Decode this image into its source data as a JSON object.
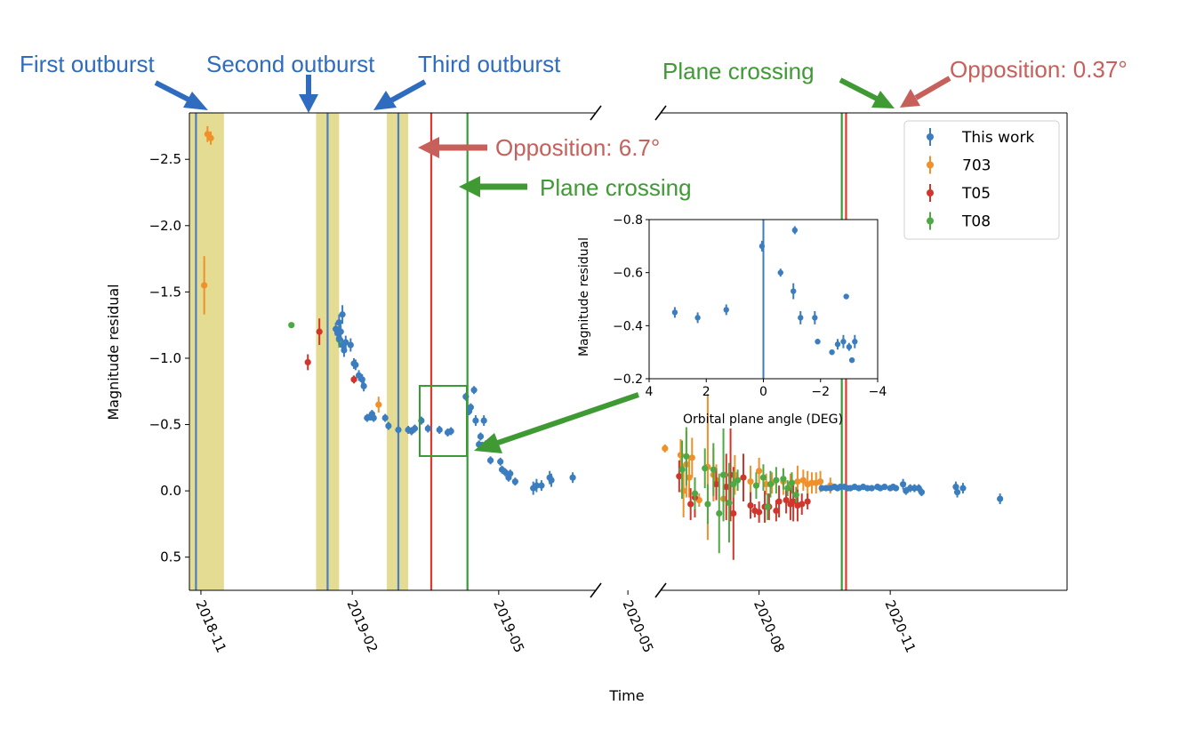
{
  "chart_data": {
    "type": "scatter",
    "xlabel": "Time",
    "ylabel": "Magnitude residual",
    "y_inverted": true,
    "ylim": [
      0.75,
      -2.85
    ],
    "yticks": [
      "−2.5",
      "−2.0",
      "−1.5",
      "−1.0",
      "−0.5",
      "0.0",
      "0.5"
    ],
    "ytick_values": [
      -2.5,
      -2.0,
      -1.5,
      -1.0,
      -0.5,
      0.0,
      0.5
    ],
    "broken_x_axis": true,
    "xlim_left_days": [
      -7,
      240
    ],
    "xlim_right_days": [
      570,
      855
    ],
    "x_origin": "2018-11-01",
    "xticks": [
      {
        "label": "2018-11",
        "day": 0
      },
      {
        "label": "2019-02",
        "day": 92
      },
      {
        "label": "2019-05",
        "day": 181
      },
      {
        "label": "2020-05",
        "day": 547
      },
      {
        "label": "2020-08",
        "day": 639
      },
      {
        "label": "2020-11",
        "day": 731
      }
    ],
    "outburst_bands": [
      [
        -7,
        14
      ],
      [
        70,
        84
      ],
      [
        113,
        126
      ]
    ],
    "vlines": [
      {
        "name": "first-outburst",
        "day": -3,
        "color": "#4a7fc1"
      },
      {
        "name": "second-outburst",
        "day": 77,
        "color": "#4a7fc1"
      },
      {
        "name": "third-outburst",
        "day": 120,
        "color": "#4a7fc1"
      },
      {
        "name": "opposition-1",
        "day": 140,
        "color": "#e0382b"
      },
      {
        "name": "plane-crossing-1",
        "day": 162,
        "color": "#3a9a35"
      },
      {
        "name": "plane-crossing-2",
        "day": 697,
        "color": "#3a9a35"
      },
      {
        "name": "opposition-2",
        "day": 700,
        "color": "#e0382b"
      }
    ],
    "legend": {
      "location": "top-right",
      "entries": [
        {
          "label": "This work",
          "color": "#3b7dbf"
        },
        {
          "label": "703",
          "color": "#f0902a"
        },
        {
          "label": "T05",
          "color": "#d0362c"
        },
        {
          "label": "T08",
          "color": "#4ea844"
        }
      ]
    },
    "series": [
      {
        "name": "This work",
        "color": "#3b7dbf",
        "points": [
          [
            82,
            -1.22,
            0.05
          ],
          [
            83,
            -1.19,
            0.05
          ],
          [
            84,
            -1.27,
            0.06
          ],
          [
            84,
            -1.15,
            0.05
          ],
          [
            85,
            -1.2,
            0.05
          ],
          [
            86,
            -1.33,
            0.07
          ],
          [
            86,
            -1.1,
            0.05
          ],
          [
            87,
            -1.06,
            0.05
          ],
          [
            88,
            -1.12,
            0.05
          ],
          [
            91,
            -1.1,
            0.05
          ],
          [
            93,
            -0.96,
            0.04
          ],
          [
            94,
            -0.95,
            0.04
          ],
          [
            96,
            -0.87,
            0.04
          ],
          [
            98,
            -0.84,
            0.04
          ],
          [
            99,
            -0.79,
            0.04
          ],
          [
            101,
            -0.55,
            0.03
          ],
          [
            103,
            -0.56,
            0.03
          ],
          [
            104,
            -0.58,
            0.03
          ],
          [
            105,
            -0.55,
            0.03
          ],
          [
            112,
            -0.55,
            0.03
          ],
          [
            114,
            -0.49,
            0.03
          ],
          [
            120,
            -0.46,
            0.03
          ],
          [
            126,
            -0.46,
            0.03
          ],
          [
            128,
            -0.45,
            0.03
          ],
          [
            130,
            -0.47,
            0.03
          ],
          [
            134,
            -0.53,
            0.03
          ],
          [
            138,
            -0.47,
            0.03
          ],
          [
            145,
            -0.46,
            0.03
          ],
          [
            150,
            -0.44,
            0.03
          ],
          [
            152,
            -0.45,
            0.03
          ],
          [
            161,
            -0.71,
            0.03
          ],
          [
            163,
            -0.6,
            0.03
          ],
          [
            164,
            -0.63,
            0.03
          ],
          [
            166,
            -0.76,
            0.03
          ],
          [
            167,
            -0.53,
            0.04
          ],
          [
            169,
            -0.35,
            0.03
          ],
          [
            170,
            -0.41,
            0.03
          ],
          [
            171,
            -0.34,
            0.03
          ],
          [
            172,
            -0.53,
            0.04
          ],
          [
            173,
            -0.35,
            0.03
          ],
          [
            176,
            -0.23,
            0.03
          ],
          [
            182,
            -0.22,
            0.03
          ],
          [
            183,
            -0.16,
            0.03
          ],
          [
            185,
            -0.14,
            0.03
          ],
          [
            187,
            -0.1,
            0.03
          ],
          [
            188,
            -0.13,
            0.03
          ],
          [
            191,
            -0.07,
            0.03
          ],
          [
            202,
            -0.02,
            0.05
          ],
          [
            204,
            -0.04,
            0.05
          ],
          [
            207,
            -0.04,
            0.04
          ],
          [
            212,
            -0.1,
            0.05
          ],
          [
            213,
            -0.08,
            0.05
          ],
          [
            226,
            -0.1,
            0.04
          ],
          [
            683,
            -0.02,
            0.02
          ],
          [
            686,
            -0.02,
            0.02
          ],
          [
            689,
            -0.02,
            0.02
          ],
          [
            692,
            -0.03,
            0.02
          ],
          [
            694,
            -0.02,
            0.02
          ],
          [
            696,
            -0.03,
            0.02
          ],
          [
            699,
            -0.03,
            0.02
          ],
          [
            701,
            -0.02,
            0.02
          ],
          [
            703,
            -0.02,
            0.02
          ],
          [
            706,
            -0.03,
            0.02
          ],
          [
            709,
            -0.02,
            0.02
          ],
          [
            712,
            -0.03,
            0.02
          ],
          [
            715,
            -0.02,
            0.02
          ],
          [
            718,
            -0.02,
            0.02
          ],
          [
            722,
            -0.03,
            0.02
          ],
          [
            724,
            -0.02,
            0.02
          ],
          [
            727,
            -0.03,
            0.02
          ],
          [
            731,
            -0.02,
            0.02
          ],
          [
            733,
            -0.03,
            0.02
          ],
          [
            735,
            -0.02,
            0.02
          ],
          [
            740,
            -0.05,
            0.04
          ],
          [
            742,
            0.0,
            0.03
          ],
          [
            745,
            -0.02,
            0.03
          ],
          [
            748,
            -0.02,
            0.03
          ],
          [
            751,
            -0.02,
            0.03
          ],
          [
            753,
            0.01,
            0.03
          ],
          [
            777,
            -0.03,
            0.04
          ],
          [
            778,
            0.01,
            0.04
          ],
          [
            782,
            -0.02,
            0.04
          ],
          [
            808,
            0.06,
            0.04
          ]
        ]
      },
      {
        "name": "703",
        "color": "#f0902a",
        "points": [
          [
            4,
            -2.69,
            0.06
          ],
          [
            6,
            -2.66,
            0.05
          ],
          [
            2,
            -1.55,
            0.22
          ],
          [
            108,
            -0.65,
            0.06
          ],
          [
            573,
            -0.32,
            0.03
          ],
          [
            584,
            -0.27,
            0.12
          ],
          [
            586,
            0.0,
            0.2
          ],
          [
            588,
            -0.2,
            0.25
          ],
          [
            590,
            -0.1,
            0.15
          ],
          [
            592,
            -0.25,
            0.15
          ],
          [
            597,
            0.07,
            0.05
          ],
          [
            603,
            -0.18,
            0.55
          ],
          [
            607,
            -0.12,
            0.2
          ],
          [
            609,
            -0.08,
            0.12
          ],
          [
            614,
            0.06,
            0.1
          ],
          [
            622,
            -0.12,
            0.15
          ],
          [
            633,
            -0.07,
            0.12
          ],
          [
            639,
            -0.15,
            0.1
          ],
          [
            644,
            -0.05,
            0.08
          ],
          [
            648,
            -0.06,
            0.08
          ],
          [
            656,
            -0.07,
            0.1
          ],
          [
            661,
            -0.05,
            0.08
          ],
          [
            666,
            -0.07,
            0.12
          ],
          [
            670,
            -0.08,
            0.08
          ],
          [
            673,
            -0.05,
            0.1
          ],
          [
            676,
            -0.06,
            0.08
          ],
          [
            679,
            -0.06,
            0.08
          ],
          [
            682,
            -0.07,
            0.08
          ],
          [
            689,
            -0.04,
            0.06
          ]
        ]
      },
      {
        "name": "T05",
        "color": "#d0362c",
        "points": [
          [
            65,
            -0.97,
            0.06
          ],
          [
            72,
            -1.2,
            0.1
          ],
          [
            93,
            -0.84,
            0.03
          ],
          [
            583,
            -0.11,
            0.12
          ],
          [
            591,
            0.1,
            0.12
          ],
          [
            594,
            0.05,
            0.15
          ],
          [
            609,
            -0.05,
            0.12
          ],
          [
            616,
            -0.03,
            0.25
          ],
          [
            619,
            -0.12,
            0.35
          ],
          [
            621,
            0.17,
            0.35
          ],
          [
            628,
            -0.1,
            0.18
          ],
          [
            633,
            0.11,
            0.1
          ],
          [
            636,
            0.15,
            0.05
          ],
          [
            639,
            0.16,
            0.08
          ],
          [
            643,
            0.12,
            0.12
          ],
          [
            646,
            0.12,
            0.1
          ],
          [
            651,
            0.15,
            0.08
          ],
          [
            653,
            0.08,
            0.12
          ],
          [
            658,
            0.07,
            0.1
          ],
          [
            661,
            0.1,
            0.12
          ],
          [
            663,
            0.08,
            0.15
          ],
          [
            666,
            0.11,
            0.12
          ],
          [
            669,
            0.1,
            0.08
          ],
          [
            673,
            0.08,
            0.06
          ]
        ]
      },
      {
        "name": "T08",
        "color": "#4ea844",
        "points": [
          [
            55,
            -1.25,
            0.02
          ],
          [
            84,
            -1.14,
            0.06
          ],
          [
            585,
            -0.16,
            0.22
          ],
          [
            588,
            -0.26,
            0.22
          ],
          [
            594,
            0.02,
            0.12
          ],
          [
            601,
            -0.17,
            0.15
          ],
          [
            603,
            0.1,
            0.15
          ],
          [
            607,
            -0.16,
            0.2
          ],
          [
            611,
            0.17,
            0.3
          ],
          [
            614,
            -0.12,
            0.35
          ],
          [
            618,
            0.09,
            0.3
          ],
          [
            621,
            -0.05,
            0.1
          ],
          [
            624,
            -0.08,
            0.08
          ],
          [
            637,
            -0.04,
            0.1
          ],
          [
            642,
            -0.1,
            0.1
          ],
          [
            645,
            0.12,
            0.1
          ],
          [
            647,
            -0.05,
            0.1
          ],
          [
            651,
            -0.08,
            0.1
          ],
          [
            656,
            -0.09,
            0.08
          ],
          [
            659,
            -0.02,
            0.06
          ],
          [
            662,
            -0.06,
            0.08
          ],
          [
            665,
            0.03,
            0.06
          ]
        ]
      }
    ],
    "inset": {
      "xlabel": "Orbital plane angle (DEG)",
      "ylabel": "Magnitude residual",
      "xlim": [
        4,
        -4
      ],
      "ylim": [
        -0.2,
        -0.8
      ],
      "xticks": [
        "4",
        "2",
        "0",
        "−2",
        "−4"
      ],
      "xtick_values": [
        4,
        2,
        0,
        -2,
        -4
      ],
      "yticks": [
        "−0.8",
        "−0.6",
        "−0.4",
        "−0.2"
      ],
      "ytick_values": [
        -0.8,
        -0.6,
        -0.4,
        -0.2
      ],
      "vline_at": 0,
      "points": [
        [
          3.1,
          -0.45,
          0.02
        ],
        [
          2.3,
          -0.43,
          0.02
        ],
        [
          1.3,
          -0.46,
          0.02
        ],
        [
          0.05,
          -0.7,
          0.02
        ],
        [
          -0.6,
          -0.6,
          0.015
        ],
        [
          -1.1,
          -0.76,
          0.015
        ],
        [
          -1.05,
          -0.53,
          0.03
        ],
        [
          -1.3,
          -0.43,
          0.025
        ],
        [
          -1.8,
          -0.43,
          0.025
        ],
        [
          -1.9,
          -0.34,
          0.01
        ],
        [
          -2.4,
          -0.3,
          0.01
        ],
        [
          -2.6,
          -0.33,
          0.02
        ],
        [
          -2.8,
          -0.34,
          0.025
        ],
        [
          -2.9,
          -0.51,
          0.01
        ],
        [
          -3.0,
          -0.32,
          0.015
        ],
        [
          -3.1,
          -0.27,
          0.01
        ],
        [
          -3.2,
          -0.34,
          0.025
        ]
      ]
    }
  },
  "annotations": {
    "first_outburst": "First outburst",
    "second_outburst": "Second outburst",
    "third_outburst": "Third outburst",
    "plane_crossing_top": "Plane crossing",
    "opposition_top": "Opposition: 0.37°",
    "opposition_mid": "Opposition: 6.7°",
    "plane_crossing_mid": "Plane crossing",
    "blue_color": "#2f6cbf",
    "red_color": "#c7605a",
    "green_color": "#3f9a34"
  }
}
